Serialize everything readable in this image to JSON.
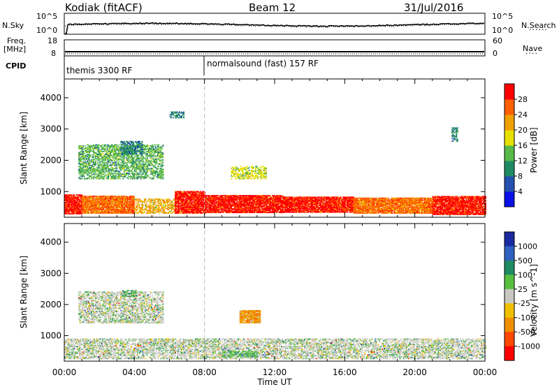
{
  "header": {
    "station": "Kodiak (fitACF)",
    "beam": "Beam 12",
    "date": "31/Jul/2016"
  },
  "top_panels": {
    "nsky_label": "N.Sky",
    "nsearch_label": "N.Search",
    "nsky_ticks": [
      "10^5",
      "10^0"
    ],
    "nsearch_ticks": [
      "10^5",
      "10^0"
    ],
    "freq_label_1": "Freq.",
    "freq_label_2": "[MHz]",
    "freq_ticks": [
      "18",
      "8"
    ],
    "nave_label": "Nave",
    "nave_ticks": [
      "60",
      "0"
    ],
    "cpid_label": "CPID",
    "cpid_segments": [
      {
        "name": "themis 3300 RF",
        "start_hour": 0
      },
      {
        "name": "normalsound (fast) 157 RF",
        "start_hour": 8
      }
    ]
  },
  "chart_data": [
    {
      "type": "heatmap",
      "name": "power",
      "ylabel": "Slant Range [km]",
      "ylim": [
        180,
        4600
      ],
      "yticks": [
        1000,
        2000,
        3000,
        4000
      ],
      "xlim": [
        0,
        24
      ],
      "colorbar": {
        "label": "Power [dB]",
        "ticks": [
          "4",
          "8",
          "12",
          "16",
          "20",
          "24",
          "28"
        ],
        "colors": [
          "#0a10e6",
          "#2450b0",
          "#208a64",
          "#58b848",
          "#e6e000",
          "#f0a000",
          "#ff6000",
          "#ff0000"
        ]
      },
      "bands": [
        {
          "t": [
            0.0,
            1.0
          ],
          "r": [
            280,
            900
          ],
          "level": 7
        },
        {
          "t": [
            1.0,
            4.0
          ],
          "r": [
            300,
            860
          ],
          "level": 6
        },
        {
          "t": [
            4.0,
            6.3
          ],
          "r": [
            300,
            780
          ],
          "level": 5
        },
        {
          "t": [
            6.3,
            8.0
          ],
          "r": [
            300,
            1000
          ],
          "level": 7
        },
        {
          "t": [
            8.0,
            12.5
          ],
          "r": [
            320,
            880
          ],
          "level": 7
        },
        {
          "t": [
            12.5,
            16.5
          ],
          "r": [
            330,
            820
          ],
          "level": 7
        },
        {
          "t": [
            16.5,
            21.0
          ],
          "r": [
            300,
            800
          ],
          "level": 6
        },
        {
          "t": [
            21.0,
            24.0
          ],
          "r": [
            260,
            860
          ],
          "level": 7
        },
        {
          "t": [
            0.8,
            5.6
          ],
          "r": [
            1400,
            2500
          ],
          "level": 3
        },
        {
          "t": [
            3.2,
            4.4
          ],
          "r": [
            2200,
            2600
          ],
          "level": 2
        },
        {
          "t": [
            6.0,
            6.8
          ],
          "r": [
            3350,
            3550
          ],
          "level": 2
        },
        {
          "t": [
            9.5,
            11.5
          ],
          "r": [
            1400,
            1800
          ],
          "level": 4
        },
        {
          "t": [
            22.1,
            22.4
          ],
          "r": [
            2600,
            3050
          ],
          "level": 2
        }
      ],
      "gap_hour": 8
    },
    {
      "type": "heatmap",
      "name": "velocity",
      "ylabel": "Slant Range [km]",
      "ylim": [
        180,
        4600
      ],
      "yticks": [
        1000,
        2000,
        3000,
        4000
      ],
      "xlim": [
        0,
        24
      ],
      "xticks": [
        "00:00",
        "04:00",
        "08:00",
        "12:00",
        "16:00",
        "20:00",
        "00:00"
      ],
      "xlabel": "Time UT",
      "colorbar": {
        "label": "Velocity [m s^-1]",
        "ticks": [
          "1000",
          "500",
          "100",
          "25",
          "-25",
          "-100",
          "-500",
          "-1000"
        ],
        "colors": [
          "#1a2aa0",
          "#3060c0",
          "#208a64",
          "#58c040",
          "#c8c8c0",
          "#f0c000",
          "#f09000",
          "#ff4800",
          "#ff0000"
        ]
      },
      "bands": [
        {
          "t": [
            0.0,
            24.0
          ],
          "r": [
            250,
            900
          ],
          "level": 4
        },
        {
          "t": [
            0.8,
            5.6
          ],
          "r": [
            1400,
            2400
          ],
          "level": 4
        },
        {
          "t": [
            3.3,
            4.1
          ],
          "r": [
            2250,
            2450
          ],
          "level": 3
        },
        {
          "t": [
            10.0,
            11.2
          ],
          "r": [
            1400,
            1800
          ],
          "level": 6
        },
        {
          "t": [
            9.0,
            11.0
          ],
          "r": [
            300,
            500
          ],
          "level": 3
        }
      ],
      "gap_hour": 8
    }
  ]
}
